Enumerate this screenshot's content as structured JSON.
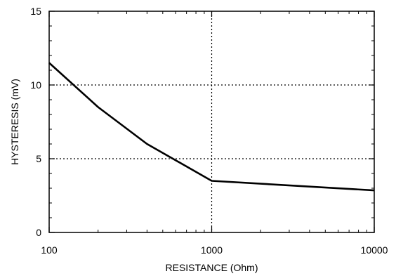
{
  "chart_data": {
    "type": "line",
    "title": "",
    "xlabel": "RESISTANCE (Ohm)",
    "ylabel": "HYSTERESIS (mV)",
    "xscale": "log",
    "xlim": [
      100,
      10000
    ],
    "ylim": [
      0,
      15
    ],
    "x_ticks": [
      100,
      1000,
      10000
    ],
    "y_ticks": [
      0,
      5,
      10,
      15
    ],
    "x_tick_labels": [
      "100",
      "1000",
      "10000"
    ],
    "y_tick_labels": [
      "0",
      "5",
      "10",
      "15"
    ],
    "grid": "dotted major gridlines at interior ticks",
    "series": [
      {
        "x": [
          100,
          200,
          400,
          1000,
          10000
        ],
        "y": [
          11.5,
          8.5,
          6.0,
          3.5,
          2.85
        ],
        "color": "#000000"
      }
    ]
  }
}
